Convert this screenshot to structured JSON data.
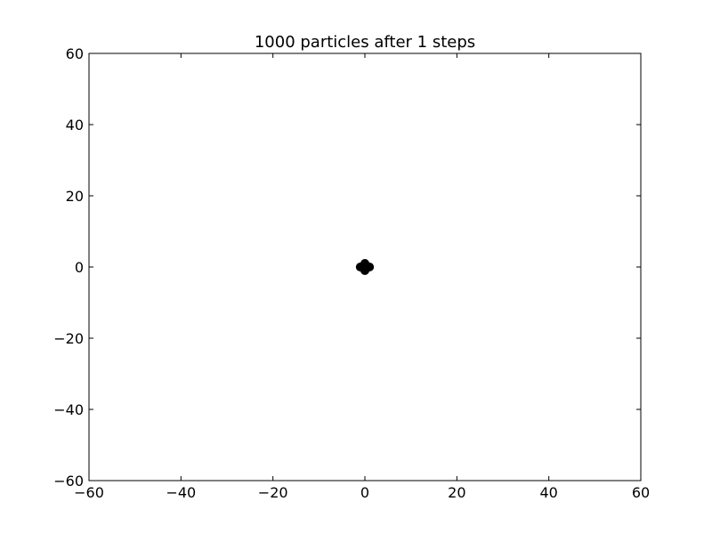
{
  "chart_data": {
    "type": "scatter",
    "title": "1000 particles after 1 steps",
    "xlabel": "",
    "ylabel": "",
    "xlim": [
      -60,
      60
    ],
    "ylim": [
      -60,
      60
    ],
    "xticks": [
      -60,
      -40,
      -20,
      0,
      20,
      40,
      60
    ],
    "yticks": [
      -60,
      -40,
      -20,
      0,
      20,
      40,
      60
    ],
    "xtick_labels": [
      "−60",
      "−40",
      "−20",
      "0",
      "20",
      "40",
      "60"
    ],
    "ytick_labels": [
      "−60",
      "−40",
      "−20",
      "0",
      "20",
      "40",
      "60"
    ],
    "grid": false,
    "marker_color": "#000000",
    "points": [
      {
        "x": 0,
        "y": 0
      },
      {
        "x": 1,
        "y": 0
      },
      {
        "x": -1,
        "y": 0
      },
      {
        "x": 0,
        "y": 1
      },
      {
        "x": 0,
        "y": -1
      }
    ]
  }
}
